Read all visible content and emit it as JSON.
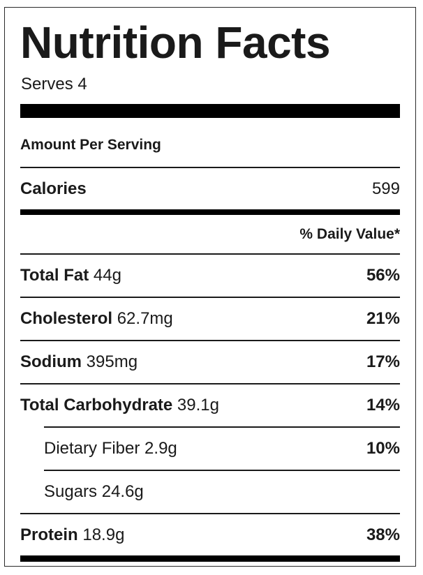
{
  "header": {
    "title": "Nutrition Facts",
    "serves": "Serves 4"
  },
  "amount_per_serving": "Amount Per Serving",
  "calories": {
    "label": "Calories",
    "value": "599"
  },
  "daily_value_header": "% Daily Value*",
  "nutrients": [
    {
      "name": "Total Fat",
      "amount": "44g",
      "dv": "56%"
    },
    {
      "name": "Cholesterol",
      "amount": "62.7mg",
      "dv": "21%"
    },
    {
      "name": "Sodium",
      "amount": "395mg",
      "dv": "17%"
    },
    {
      "name": "Total Carbohydrate",
      "amount": "39.1g",
      "dv": "14%"
    },
    {
      "name": "Dietary Fiber",
      "amount": "2.9g",
      "dv": "10%"
    },
    {
      "name": "Sugars",
      "amount": "24.6g",
      "dv": ""
    },
    {
      "name": "Protein",
      "amount": "18.9g",
      "dv": "38%"
    }
  ]
}
